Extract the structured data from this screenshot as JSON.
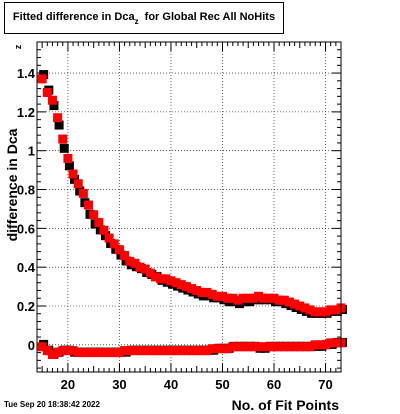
{
  "title_box": {
    "main": "Fitted difference in Dca",
    "sub": "z",
    "rest": "  for Global Rec All NoHits"
  },
  "timestamp": "Tue Sep 20 18:38:42 2022",
  "colors": {
    "series_red": "#ff0000",
    "series_black": "#000000"
  },
  "chart_data": {
    "type": "scatter",
    "title": "Fitted difference in Dca_z  for Global Rec All NoHits",
    "xlabel": "No. of Fit Points",
    "ylabel": "difference in Dca",
    "ylabel_sub": "z",
    "xlim": [
      14,
      73
    ],
    "ylim": [
      -0.14,
      1.56
    ],
    "grid": true,
    "x_ticks": [
      20,
      30,
      40,
      50,
      60,
      70
    ],
    "x_tick_labels": [
      "20",
      "30",
      "40",
      "50",
      "60",
      "70"
    ],
    "y_ticks": [
      0,
      0.2,
      0.4,
      0.6,
      0.8,
      1,
      1.2,
      1.4
    ],
    "y_tick_labels": [
      "0",
      "0.2",
      "0.4",
      "0.6",
      "0.8",
      "1",
      "1.2",
      "1.4"
    ],
    "series": [
      {
        "color": "#000000",
        "marker": "square",
        "x": [
          15,
          16,
          17,
          18,
          19,
          20,
          21,
          22,
          23,
          24,
          25,
          26,
          27,
          28,
          29,
          30,
          31,
          32,
          33,
          34,
          35,
          36,
          37,
          38,
          39,
          40,
          41,
          42,
          43,
          44,
          45,
          46,
          47,
          48,
          49,
          50,
          51,
          52,
          53,
          54,
          55,
          56,
          57,
          58,
          59,
          60,
          61,
          62,
          63,
          64,
          65,
          66,
          67,
          68,
          69,
          70,
          71,
          72,
          73
        ],
        "y": [
          1.4,
          1.32,
          1.24,
          1.14,
          1.02,
          0.93,
          0.86,
          0.8,
          0.74,
          0.68,
          0.63,
          0.6,
          0.57,
          0.53,
          0.5,
          0.47,
          0.44,
          0.42,
          0.41,
          0.4,
          0.38,
          0.37,
          0.36,
          0.34,
          0.33,
          0.32,
          0.31,
          0.3,
          0.29,
          0.28,
          0.27,
          0.26,
          0.26,
          0.25,
          0.25,
          0.24,
          0.23,
          0.23,
          0.22,
          0.23,
          0.23,
          0.24,
          0.24,
          0.24,
          0.24,
          0.23,
          0.23,
          0.22,
          0.21,
          0.2,
          0.19,
          0.18,
          0.17,
          0.17,
          0.17,
          0.17,
          0.18,
          0.18,
          0.19
        ]
      },
      {
        "color": "#ff0000",
        "marker": "square",
        "x": [
          15,
          16,
          17,
          18,
          19,
          20,
          21,
          22,
          23,
          24,
          25,
          26,
          27,
          28,
          29,
          30,
          31,
          32,
          33,
          34,
          35,
          36,
          37,
          38,
          39,
          40,
          41,
          42,
          43,
          44,
          45,
          46,
          47,
          48,
          49,
          50,
          51,
          52,
          53,
          54,
          55,
          56,
          57,
          58,
          59,
          60,
          61,
          62,
          63,
          64,
          65,
          66,
          67,
          68,
          69,
          70,
          71,
          72,
          73
        ],
        "y": [
          1.37,
          1.3,
          1.26,
          1.17,
          1.06,
          0.96,
          0.88,
          0.83,
          0.78,
          0.72,
          0.67,
          0.63,
          0.59,
          0.55,
          0.52,
          0.49,
          0.46,
          0.43,
          0.42,
          0.4,
          0.39,
          0.37,
          0.35,
          0.34,
          0.34,
          0.33,
          0.32,
          0.31,
          0.3,
          0.29,
          0.28,
          0.27,
          0.27,
          0.26,
          0.25,
          0.25,
          0.24,
          0.24,
          0.23,
          0.24,
          0.24,
          0.24,
          0.25,
          0.24,
          0.24,
          0.24,
          0.23,
          0.23,
          0.22,
          0.21,
          0.2,
          0.19,
          0.18,
          0.17,
          0.17,
          0.17,
          0.18,
          0.18,
          0.19
        ]
      },
      {
        "color": "#000000",
        "marker": "square",
        "x": [
          15,
          16,
          17,
          18,
          19,
          20,
          21,
          22,
          23,
          24,
          25,
          26,
          27,
          28,
          29,
          30,
          31,
          32,
          33,
          34,
          35,
          36,
          37,
          38,
          39,
          40,
          41,
          42,
          43,
          44,
          45,
          46,
          47,
          48,
          49,
          50,
          51,
          52,
          53,
          54,
          55,
          56,
          57,
          58,
          59,
          60,
          61,
          62,
          63,
          64,
          65,
          66,
          67,
          68,
          69,
          70,
          71,
          72,
          73
        ],
        "y": [
          0.01,
          -0.02,
          -0.04,
          -0.03,
          -0.02,
          -0.02,
          -0.03,
          -0.03,
          -0.03,
          -0.03,
          -0.03,
          -0.03,
          -0.03,
          -0.03,
          -0.03,
          -0.03,
          -0.03,
          -0.02,
          -0.02,
          -0.02,
          -0.02,
          -0.02,
          -0.02,
          -0.02,
          -0.02,
          -0.02,
          -0.02,
          -0.02,
          -0.02,
          -0.02,
          -0.02,
          -0.02,
          -0.02,
          -0.02,
          -0.01,
          -0.01,
          -0.01,
          0.0,
          0.0,
          0.0,
          0.0,
          0.0,
          -0.01,
          -0.01,
          0.0,
          0.0,
          0.0,
          0.0,
          0.0,
          0.0,
          0.0,
          0.0,
          0.0,
          0.0,
          0.0,
          0.01,
          0.01,
          0.02,
          0.02
        ]
      },
      {
        "color": "#ff0000",
        "marker": "square",
        "x": [
          15,
          16,
          17,
          18,
          19,
          20,
          21,
          22,
          23,
          24,
          25,
          26,
          27,
          28,
          29,
          30,
          31,
          32,
          33,
          34,
          35,
          36,
          37,
          38,
          39,
          40,
          41,
          42,
          43,
          44,
          45,
          46,
          47,
          48,
          49,
          50,
          51,
          52,
          53,
          54,
          55,
          56,
          57,
          58,
          59,
          60,
          61,
          62,
          63,
          64,
          65,
          66,
          67,
          68,
          69,
          70,
          71,
          72,
          73
        ],
        "y": [
          -0.01,
          -0.03,
          -0.05,
          -0.04,
          -0.03,
          -0.03,
          -0.03,
          -0.04,
          -0.04,
          -0.04,
          -0.04,
          -0.04,
          -0.04,
          -0.04,
          -0.04,
          -0.04,
          -0.03,
          -0.03,
          -0.03,
          -0.03,
          -0.03,
          -0.03,
          -0.03,
          -0.03,
          -0.03,
          -0.03,
          -0.03,
          -0.03,
          -0.03,
          -0.03,
          -0.03,
          -0.03,
          -0.03,
          -0.02,
          -0.02,
          -0.02,
          -0.02,
          -0.01,
          -0.01,
          -0.01,
          -0.01,
          -0.01,
          -0.01,
          -0.01,
          -0.01,
          -0.01,
          -0.01,
          -0.01,
          -0.01,
          -0.01,
          -0.01,
          -0.01,
          -0.01,
          0.0,
          0.0,
          0.0,
          0.01,
          0.01,
          0.01
        ]
      }
    ]
  }
}
